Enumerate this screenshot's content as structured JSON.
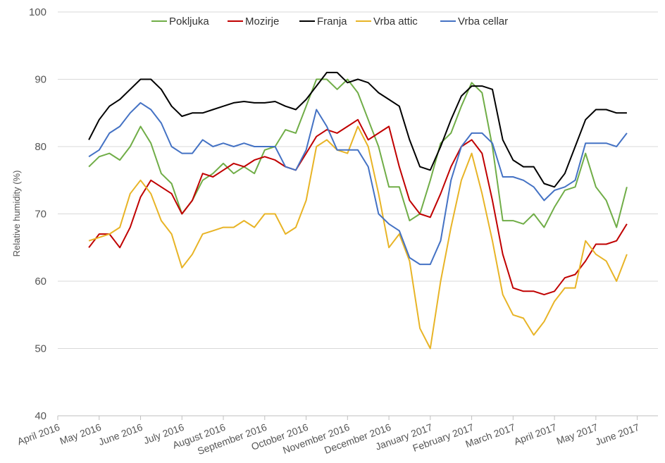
{
  "chart_data": {
    "type": "line",
    "y_label": "Relative humidity (%)",
    "categories": [
      "April 2016",
      null,
      null,
      null,
      "May 2016",
      null,
      null,
      null,
      "June 2016",
      null,
      null,
      null,
      "July 2016",
      null,
      null,
      null,
      "August 2016",
      null,
      null,
      null,
      "September 2016",
      null,
      null,
      null,
      "October 2016",
      null,
      null,
      null,
      "November 2016",
      null,
      null,
      null,
      "December 2016",
      null,
      null,
      null,
      "January 2017",
      null,
      null,
      null,
      "February 2017",
      null,
      null,
      null,
      "March 2017",
      null,
      null,
      null,
      "April 2017",
      null,
      null,
      null,
      "May 2017",
      null,
      null,
      null,
      "June 2017",
      null,
      null
    ],
    "ylim": [
      40,
      100
    ],
    "yticks": [
      40,
      50,
      60,
      70,
      80,
      90,
      100
    ],
    "grid": true,
    "legend": "top",
    "series": [
      {
        "name": "Pokljuka",
        "color": "#70ad47",
        "values": [
          null,
          null,
          null,
          77,
          78.5,
          79,
          78,
          80,
          83,
          80.5,
          76,
          74.5,
          70,
          72,
          75,
          76,
          77.5,
          76,
          77,
          76,
          79.5,
          80,
          82.5,
          82,
          86,
          90,
          90,
          88.5,
          90,
          88,
          84,
          80,
          74,
          74,
          69,
          70,
          75,
          80.5,
          82,
          86,
          89.5,
          88,
          80,
          69,
          69,
          68.5,
          70,
          68,
          71,
          73.5,
          74,
          79,
          74,
          72,
          68,
          74,
          null,
          null,
          null
        ]
      },
      {
        "name": "Mozirje",
        "color": "#c00000",
        "values": [
          null,
          null,
          null,
          65,
          67,
          67,
          65,
          68,
          72.5,
          75,
          74,
          73,
          70,
          72,
          76,
          75.5,
          76.5,
          77.5,
          77,
          78,
          78.5,
          78,
          77,
          76.5,
          79,
          81.5,
          82.5,
          82,
          83,
          84,
          81,
          82,
          83,
          77,
          72,
          70,
          69.5,
          73,
          77,
          80,
          81,
          79,
          72,
          64,
          59,
          58.5,
          58.5,
          58,
          58.5,
          60.5,
          61,
          63,
          65.5,
          65.5,
          66,
          68.5,
          null,
          null,
          null
        ]
      },
      {
        "name": "Franja",
        "color": "#000000",
        "values": [
          null,
          null,
          null,
          81,
          84,
          86,
          87,
          88.5,
          90,
          90,
          88.5,
          86,
          84.5,
          85,
          85,
          85.5,
          86,
          86.5,
          86.7,
          86.5,
          86.5,
          86.7,
          86,
          85.5,
          87,
          89,
          91,
          91,
          89.5,
          90,
          89.5,
          88,
          87,
          86,
          81,
          77,
          76.5,
          80,
          84,
          87.5,
          89,
          89,
          88.5,
          81,
          78,
          77,
          77,
          74.5,
          74,
          76,
          80,
          84,
          85.5,
          85.5,
          85,
          85,
          null,
          null,
          null
        ]
      },
      {
        "name": "Vrba attic",
        "color": "#e8b426",
        "values": [
          null,
          null,
          null,
          66,
          66.5,
          67,
          68,
          73,
          75,
          73,
          69,
          67,
          62,
          64,
          67,
          67.5,
          68,
          68,
          69,
          68,
          70,
          70,
          67,
          68,
          72,
          80,
          81,
          79.5,
          79,
          83,
          80,
          73,
          65,
          67,
          63,
          53,
          50,
          60,
          68,
          75,
          79,
          73,
          66,
          58,
          55,
          54.5,
          52,
          54,
          57,
          59,
          59,
          66,
          64,
          63,
          60,
          64,
          null,
          null,
          null
        ]
      },
      {
        "name": "Vrba cellar",
        "color": "#4472c4",
        "values": [
          null,
          null,
          null,
          78.5,
          79.5,
          82,
          83,
          85,
          86.5,
          85.5,
          83.5,
          80,
          79,
          79,
          81,
          80,
          80.5,
          80,
          80.5,
          80,
          80,
          80,
          77,
          76.5,
          79.5,
          85.5,
          83,
          79.5,
          79.5,
          79.5,
          77,
          70,
          68.5,
          67.5,
          63.5,
          62.5,
          62.5,
          66,
          75,
          80,
          82,
          82,
          80.5,
          75.5,
          75.5,
          75,
          74,
          72,
          73.5,
          74,
          75,
          80.5,
          80.5,
          80.5,
          80,
          82,
          null,
          null,
          null
        ]
      }
    ]
  }
}
